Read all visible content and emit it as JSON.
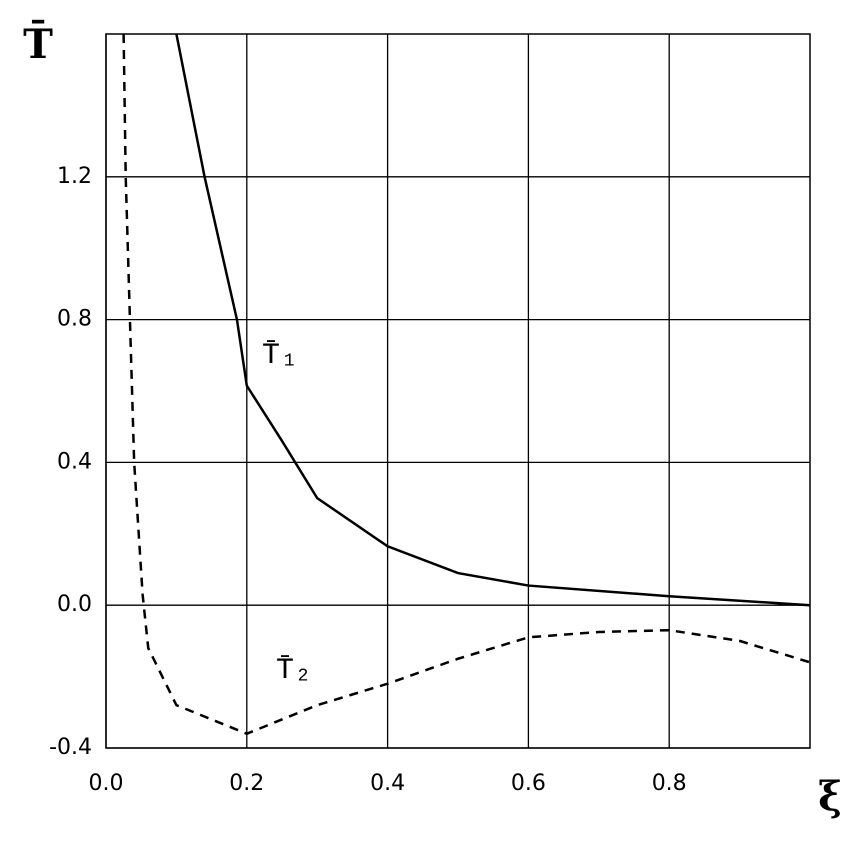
{
  "chart_data": {
    "type": "line",
    "ylabel": "T̄",
    "xlabel": "ξ",
    "xlim": [
      0,
      1
    ],
    "ylim": [
      -0.4,
      1.6
    ],
    "xticks": [
      {
        "value": 0,
        "label": "0.0"
      },
      0.2,
      0.4,
      0.6,
      0.8
    ],
    "yticks": [
      -0.4,
      {
        "value": 0,
        "label": "0.0"
      },
      0.4,
      0.8,
      1.2
    ],
    "grid": true,
    "series": [
      {
        "name": "T̄₁",
        "color": "#000000",
        "linestyle": "solid",
        "x": [
          0.1,
          0.14,
          0.186,
          0.2,
          0.25,
          0.3,
          0.4,
          0.5,
          0.6,
          0.8,
          1.0
        ],
        "values": [
          1.6,
          1.2,
          0.8,
          0.615,
          0.46,
          0.3,
          0.165,
          0.09,
          0.055,
          0.025,
          0.0
        ]
      },
      {
        "name": "T̄₂",
        "color": "#000000",
        "linestyle": "dashed",
        "x": [
          0.025,
          0.028,
          0.04,
          0.052,
          0.06,
          0.1,
          0.2,
          0.3,
          0.4,
          0.5,
          0.6,
          0.7,
          0.8,
          0.9,
          1.0
        ],
        "values": [
          1.6,
          1.2,
          0.4,
          0.03,
          -0.12,
          -0.28,
          -0.36,
          -0.28,
          -0.22,
          -0.15,
          -0.09,
          -0.075,
          -0.07,
          -0.1,
          -0.16
        ]
      }
    ]
  }
}
